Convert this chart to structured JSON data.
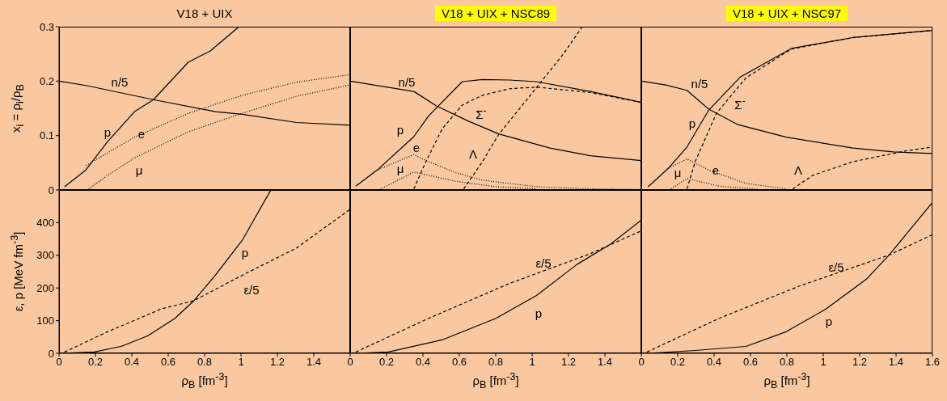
{
  "chart_data": [
    {
      "type": "line",
      "title": "V18 + UIX",
      "ylabel": "x$_{i}$ = ρ$_{i}$/ρ$_{B}$",
      "xlim": [
        0,
        1.6
      ],
      "xticks": [
        0,
        0.2,
        0.4,
        0.6,
        0.8,
        1,
        1.2,
        1.4
      ],
      "ylim": [
        0,
        0.3
      ],
      "yticks": [
        0,
        0.1,
        0.2,
        0.3
      ],
      "tick_labels": "y",
      "series": [
        {
          "name": "n/5",
          "color": "#000000",
          "line_style": "solid",
          "x": [
            0,
            0.148,
            0.519,
            0.859,
            1.007,
            1.304,
            1.6
          ],
          "values": [
            0.2,
            0.192,
            0.166,
            0.144,
            0.139,
            0.124,
            0.119
          ]
        },
        {
          "name": "p",
          "color": "#000000",
          "line_style": "solid",
          "x": [
            0.03,
            0.145,
            0.267,
            0.415,
            0.519,
            0.711,
            0.83,
            0.985
          ],
          "values": [
            0.006,
            0.036,
            0.089,
            0.144,
            0.166,
            0.235,
            0.255,
            0.299
          ]
        },
        {
          "name": "e",
          "color": "#000000",
          "line_style": "dotted",
          "x": [
            0.148,
            0.415,
            0.711,
            1.007,
            1.304,
            1.6
          ],
          "values": [
            0.045,
            0.097,
            0.141,
            0.174,
            0.198,
            0.212
          ]
        },
        {
          "name": "μ",
          "color": "#000000",
          "line_style": "dotted",
          "x": [
            0.163,
            0.267,
            0.415,
            0.711,
            1.007,
            1.304,
            1.6
          ],
          "values": [
            0.002,
            0.027,
            0.059,
            0.107,
            0.141,
            0.172,
            0.193
          ]
        }
      ]
    },
    {
      "type": "line",
      "title": "V18 + UIX + NSC89",
      "xlim": [
        0,
        1.6
      ],
      "xticks": [
        0,
        0.2,
        0.4,
        0.6,
        0.8,
        1,
        1.2,
        1.4
      ],
      "ylim": [
        0,
        0.3
      ],
      "yticks": [
        0,
        0.1,
        0.2,
        0.3
      ],
      "tick_labels": false,
      "series": [
        {
          "name": "n/5",
          "color": "#000000",
          "line_style": "solid",
          "x": [
            0,
            0.35,
            0.476,
            0.653,
            0.816,
            1.098,
            1.32,
            1.6
          ],
          "values": [
            0.2,
            0.181,
            0.154,
            0.126,
            0.103,
            0.077,
            0.063,
            0.054
          ]
        },
        {
          "name": "p",
          "color": "#000000",
          "line_style": "solid",
          "x": [
            0.031,
            0.15,
            0.35,
            0.431,
            0.616,
            0.727,
            0.876,
            1.024,
            1.32,
            1.6
          ],
          "values": [
            0.007,
            0.037,
            0.098,
            0.136,
            0.199,
            0.203,
            0.202,
            0.199,
            0.181,
            0.161
          ]
        },
        {
          "name": "Σ$^{-}$",
          "color": "#000000",
          "line_style": "dashed",
          "x": [
            0.35,
            0.416,
            0.505,
            0.616,
            0.727,
            0.876,
            1.024,
            1.32,
            1.6
          ],
          "values": [
            0.002,
            0.052,
            0.112,
            0.156,
            0.174,
            0.186,
            0.189,
            0.179,
            0.161
          ]
        },
        {
          "name": "Λ",
          "color": "#000000",
          "line_style": "dashed",
          "x": [
            0.624,
            0.727,
            0.816,
            1.024,
            1.172,
            1.276
          ],
          "values": [
            0.002,
            0.052,
            0.102,
            0.188,
            0.25,
            0.3
          ]
        },
        {
          "name": "e",
          "color": "#000000",
          "line_style": "dotted",
          "x": [
            0.15,
            0.35,
            0.431,
            0.579,
            0.727,
            1.024,
            1.32,
            1.6
          ],
          "values": [
            0.037,
            0.065,
            0.052,
            0.032,
            0.018,
            0.006,
            0.002,
            0.001
          ]
        },
        {
          "name": "μ",
          "color": "#000000",
          "line_style": "dotted",
          "x": [
            0.164,
            0.35,
            0.431,
            0.579,
            0.8,
            1.024
          ],
          "values": [
            0.001,
            0.033,
            0.027,
            0.016,
            0.006,
            0.002
          ]
        }
      ]
    },
    {
      "type": "line",
      "title": "V18 + UIX + NSC97",
      "xlim": [
        0,
        1.6
      ],
      "xticks": [
        0,
        0.2,
        0.4,
        0.6,
        0.8,
        1,
        1.2,
        1.4,
        1.6
      ],
      "ylim": [
        0,
        0.3
      ],
      "yticks": [
        0,
        0.1,
        0.2,
        0.3
      ],
      "tick_labels": false,
      "series": [
        {
          "name": "n/5",
          "color": "#000000",
          "line_style": "solid",
          "x": [
            0,
            0.134,
            0.251,
            0.369,
            0.531,
            0.796,
            1.163,
            1.384,
            1.6
          ],
          "values": [
            0.2,
            0.193,
            0.183,
            0.149,
            0.12,
            0.097,
            0.077,
            0.07,
            0.067
          ]
        },
        {
          "name": "p",
          "color": "#000000",
          "line_style": "solid",
          "x": [
            0.038,
            0.149,
            0.251,
            0.369,
            0.546,
            0.825,
            1.163,
            1.6
          ],
          "values": [
            0.006,
            0.04,
            0.079,
            0.146,
            0.208,
            0.26,
            0.28,
            0.293
          ]
        },
        {
          "name": "Σ$^{-}$",
          "color": "#000000",
          "line_style": "dashed",
          "x": [
            0.251,
            0.296,
            0.413,
            0.575,
            0.825,
            1.163,
            1.6
          ],
          "values": [
            0.002,
            0.052,
            0.141,
            0.206,
            0.259,
            0.28,
            0.293
          ]
        },
        {
          "name": "Λ",
          "color": "#000000",
          "line_style": "dashed",
          "x": [
            0.832,
            0.943,
            1.163,
            1.457,
            1.6
          ],
          "values": [
            0.002,
            0.027,
            0.052,
            0.072,
            0.079
          ]
        },
        {
          "name": "e",
          "color": "#000000",
          "line_style": "dotted",
          "x": [
            0.149,
            0.251,
            0.369,
            0.575,
            0.796
          ],
          "values": [
            0.04,
            0.057,
            0.037,
            0.012,
            0.002
          ]
        },
        {
          "name": "μ",
          "color": "#000000",
          "line_style": "dotted",
          "x": [
            0.163,
            0.251,
            0.428,
            0.649
          ],
          "values": [
            0.002,
            0.021,
            0.007,
            0.001
          ]
        }
      ]
    },
    {
      "type": "line",
      "xlabel": "ρ$_{B}$ [fm$^{-3}$]",
      "ylabel": "ε, p [MeV fm$^{-3}$]",
      "xlim": [
        0,
        1.6
      ],
      "xticks": [
        0,
        0.2,
        0.4,
        0.6,
        0.8,
        1,
        1.2,
        1.4
      ],
      "ylim": [
        0,
        500
      ],
      "yticks": [
        0,
        100,
        200,
        300,
        400
      ],
      "series": [
        {
          "name": "p",
          "color": "#000000",
          "line_style": "solid",
          "x": [
            0,
            0.193,
            0.341,
            0.489,
            0.637,
            0.741,
            0.859,
            1.007,
            1.163
          ],
          "values": [
            0,
            4,
            21,
            54,
            107,
            161,
            239,
            346,
            499
          ]
        },
        {
          "name": "ε/5",
          "color": "#000000",
          "line_style": "dashed",
          "x": [
            0.03,
            0.267,
            0.563,
            0.741,
            1.007,
            1.304,
            1.6
          ],
          "values": [
            4,
            66,
            136,
            161,
            239,
            322,
            441
          ]
        }
      ]
    },
    {
      "type": "line",
      "xlabel": "ρ$_{B}$ [fm$^{-3}$]",
      "xlim": [
        0,
        1.6
      ],
      "xticks": [
        0,
        0.2,
        0.4,
        0.6,
        0.8,
        1,
        1.2,
        1.4
      ],
      "ylim": [
        0,
        500
      ],
      "yticks": [
        0,
        100,
        200,
        300,
        400
      ],
      "tick_labels": "x",
      "series": [
        {
          "name": "p",
          "color": "#000000",
          "line_style": "solid",
          "x": [
            0.031,
            0.209,
            0.505,
            0.801,
            1.024,
            1.246,
            1.431,
            1.6
          ],
          "values": [
            0,
            4,
            41,
            107,
            177,
            272,
            334,
            408
          ]
        },
        {
          "name": "ε/5",
          "color": "#000000",
          "line_style": "dashed",
          "x": [
            0.031,
            0.431,
            0.876,
            1.32,
            1.6
          ],
          "values": [
            4,
            107,
            214,
            305,
            375
          ]
        }
      ]
    },
    {
      "type": "line",
      "xlabel": "ρ$_{B}$ [fm$^{-3}$]",
      "xlim": [
        0,
        1.6
      ],
      "xticks": [
        0,
        0.2,
        0.4,
        0.6,
        0.8,
        1,
        1.2,
        1.4,
        1.6
      ],
      "ylim": [
        0,
        500
      ],
      "yticks": [
        0,
        100,
        200,
        300,
        400
      ],
      "tick_labels": "x",
      "series": [
        {
          "name": "p",
          "color": "#000000",
          "line_style": "solid",
          "x": [
            0.031,
            0.281,
            0.575,
            0.796,
            1.016,
            1.237,
            1.362,
            1.6
          ],
          "values": [
            0,
            8,
            21,
            66,
            136,
            227,
            301,
            462
          ]
        },
        {
          "name": "ε/5",
          "color": "#000000",
          "line_style": "dashed",
          "x": [
            0.031,
            0.428,
            0.869,
            1.362,
            1.6
          ],
          "values": [
            4,
            107,
            206,
            301,
            363
          ]
        }
      ]
    }
  ]
}
